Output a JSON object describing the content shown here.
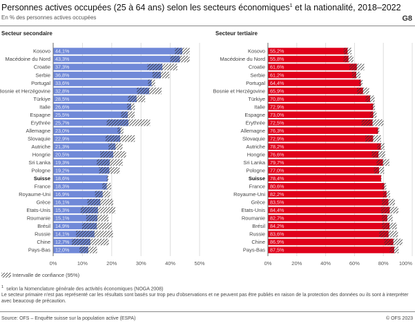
{
  "header": {
    "title": "Personnes actives occupées (25 à 64 ans) selon les secteurs économiques",
    "title_sup": "1",
    "title_tail": " et la nationalité, 2018–2022",
    "subtitle": "En % des personnes actives occupées",
    "graph_number": "G8"
  },
  "legend": {
    "ci_label": "Intervalle de confiance (95%)"
  },
  "footnotes": {
    "note1_mark": "1",
    "note1": "selon la Nomenclature générale des activités économiques (NOGA 2008)",
    "note2": "Le secteur primaire n'est pas représenté car les résultats sont basés sur trop peu d'observations et ne peuvent pas être publiés en raison de la protection des données ou ils sont à interpréter avec beaucoup de précaution."
  },
  "footer": {
    "source": "Source: OFS – Enquête suisse sur la population active (ESPA)",
    "copyright": "© OFS 2023"
  },
  "colors": {
    "secondaire": "#7089d8",
    "tertiaire": "#e0001a",
    "ci_hatch": "#333333"
  },
  "chart_data": [
    {
      "type": "bar",
      "orientation": "horizontal",
      "title": "Secteur secondaire",
      "xlim": [
        0,
        50
      ],
      "xticks": [
        "0%",
        "10%",
        "20%",
        "30%",
        "40%",
        "50%"
      ],
      "grid": true,
      "highlight": "Suisse",
      "categories": [
        "Kosovo",
        "Macédoine du Nord",
        "Croatie",
        "Serbie",
        "Portugal",
        "Bosnie et Herzégovine",
        "Türkiye",
        "Italie",
        "Espagne",
        "Erythrée",
        "Allemagne",
        "Slovaquie",
        "Autriche",
        "Hongrie",
        "Sri Lanka",
        "Pologne",
        "Suisse",
        "France",
        "Royaume-Uni",
        "Grèce",
        "Etats-Unis",
        "Roumanie",
        "Brésil",
        "Russie",
        "Chine",
        "Pays-Bas"
      ],
      "labels": [
        "44,1%",
        "43,3%",
        "37,3%",
        "36,8%",
        "33,6%",
        "32,8%",
        "28,5%",
        "26,6%",
        "25,5%",
        "25,7%",
        "23,0%",
        "22,9%",
        "21,3%",
        "20,5%",
        "19,3%",
        "19,2%",
        "18,6%",
        "18,3%",
        "16,9%",
        "16,1%",
        "15,3%",
        "15,1%",
        "14,9%",
        "14,1%",
        "12,7%",
        "12,0%"
      ],
      "values": [
        44.1,
        43.3,
        37.3,
        36.8,
        33.6,
        32.8,
        28.5,
        26.6,
        25.5,
        25.7,
        23.0,
        22.9,
        21.3,
        20.5,
        19.3,
        19.2,
        18.6,
        18.3,
        16.9,
        16.1,
        15.3,
        15.1,
        14.9,
        14.1,
        12.7,
        12.0
      ],
      "ci_halfwidth": [
        2.5,
        3.3,
        5.1,
        2.9,
        1.2,
        4.2,
        2.9,
        1.3,
        2.3,
        7.4,
        1.0,
        5.0,
        2.4,
        4.4,
        4.4,
        3.5,
        0.3,
        1.5,
        2.6,
        4.4,
        5.9,
        3.8,
        5.0,
        6.3,
        6.3,
        3.0
      ]
    },
    {
      "type": "bar",
      "orientation": "horizontal",
      "title": "Secteur tertiaire",
      "xlim": [
        0,
        100
      ],
      "xticks": [
        "0%",
        "20%",
        "40%",
        "60%",
        "80%",
        "100%"
      ],
      "grid": true,
      "highlight": "Suisse",
      "categories": [
        "Kosovo",
        "Macédoine du Nord",
        "Croatie",
        "Serbie",
        "Portugal",
        "Bosnie et Herzégovine",
        "Türkiye",
        "Italie",
        "Espagne",
        "Erythrée",
        "Allemagne",
        "Slovaquie",
        "Autriche",
        "Hongrie",
        "Sri Lanka",
        "Pologne",
        "Suisse",
        "France",
        "Royaume-Uni",
        "Grèce",
        "Etats-Unis",
        "Roumanie",
        "Brésil",
        "Russie",
        "Chine",
        "Pays-Bas"
      ],
      "labels": [
        "55,2%",
        "55,8%",
        "61,6%",
        "61,2%",
        "64,4%",
        "65,9%",
        "70,8%",
        "72,9%",
        "73,0%",
        "72,5%",
        "76,3%",
        "72,9%",
        "78,2%",
        "76,6%",
        "79,7%",
        "77,0%",
        "78,4%",
        "80,6%",
        "82,2%",
        "83,5%",
        "84,4%",
        "82,7%",
        "84,2%",
        "83,6%",
        "86,9%",
        "87,5%"
      ],
      "values": [
        55.2,
        55.8,
        61.6,
        61.2,
        64.4,
        65.9,
        70.8,
        72.9,
        73.0,
        72.5,
        76.3,
        72.9,
        78.2,
        76.6,
        79.7,
        77.0,
        78.4,
        80.6,
        82.2,
        83.5,
        84.4,
        82.7,
        84.2,
        83.6,
        86.9,
        87.5
      ],
      "ci_halfwidth": [
        2.7,
        3.4,
        5.1,
        2.9,
        1.2,
        4.2,
        3.1,
        1.3,
        2.3,
        7.6,
        0.9,
        5.4,
        2.5,
        4.6,
        4.4,
        3.5,
        0.3,
        1.4,
        2.4,
        4.5,
        6.0,
        3.7,
        5.1,
        6.5,
        6.3,
        3.1
      ]
    }
  ]
}
